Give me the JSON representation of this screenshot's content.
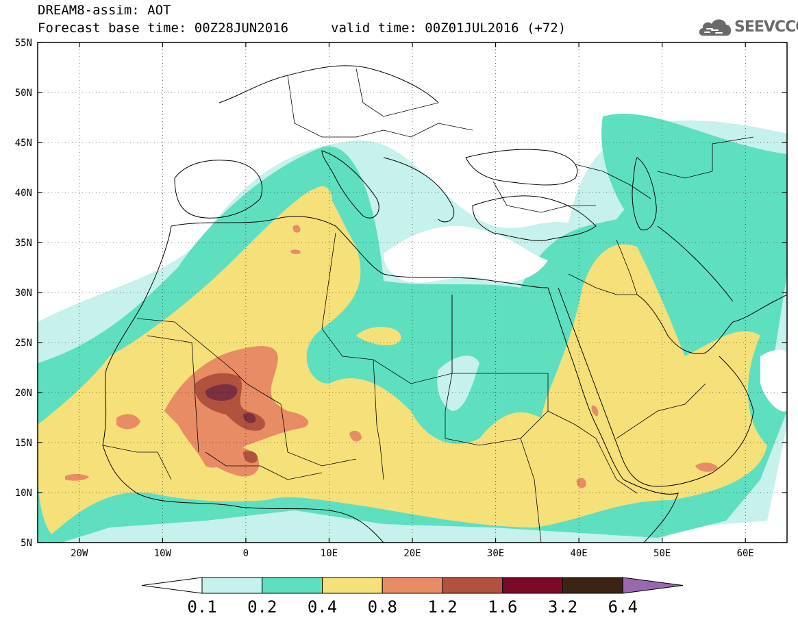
{
  "header": {
    "line1": "DREAM8-assim: AOT",
    "line2_base": "Forecast base time: 00Z28JUN2016",
    "line2_valid": "valid time: 00Z01JUL2016 (+72)"
  },
  "logo": {
    "text": "SEEVCCC",
    "icon": "cloud-icon",
    "color": "#6a6a6a"
  },
  "map": {
    "lon_range": [
      -25,
      65
    ],
    "lat_range": [
      5,
      55
    ],
    "lon_ticks": [
      "20W",
      "10W",
      "0",
      "10E",
      "20E",
      "30E",
      "40E",
      "50E",
      "60E"
    ],
    "lat_ticks": [
      "5N",
      "10N",
      "15N",
      "20N",
      "25N",
      "30N",
      "35N",
      "40N",
      "45N",
      "50N",
      "55N"
    ],
    "gridlines": "dotted"
  },
  "colorbar": {
    "levels": [
      "0.1",
      "0.2",
      "0.4",
      "0.8",
      "1.2",
      "1.6",
      "3.2",
      "6.4"
    ],
    "colors": [
      "#ffffff",
      "#c6f1ec",
      "#5edfc0",
      "#f6e07a",
      "#e88c66",
      "#b0523d",
      "#7a0a28",
      "#3c2414",
      "#9a68b0"
    ]
  }
}
